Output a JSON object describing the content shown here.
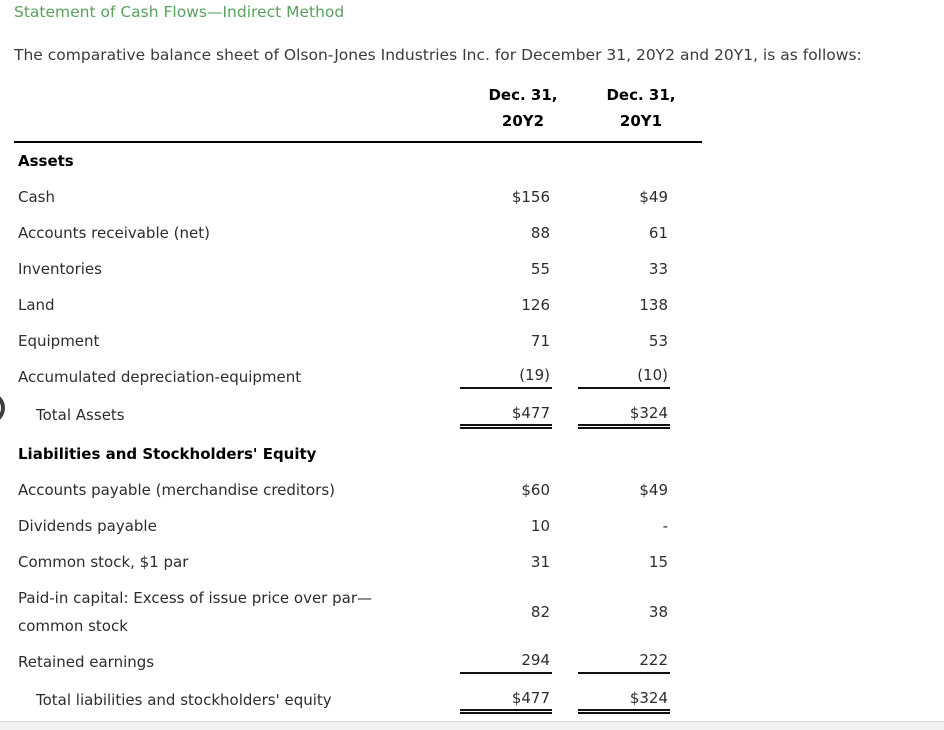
{
  "page": {
    "title": "Statement of Cash Flows—Indirect Method",
    "intro": "The comparative balance sheet of Olson-Jones Industries Inc. for December 31, 20Y2 and 20Y1, is as follows:"
  },
  "table": {
    "col_headers": [
      "Dec. 31,\n20Y2",
      "Dec. 31,\n20Y1"
    ],
    "rows": [
      {
        "type": "section",
        "label": "Assets"
      },
      {
        "label": "Cash",
        "v1": "$156",
        "v2": "$49"
      },
      {
        "label": "Accounts receivable (net)",
        "v1": "88",
        "v2": "61"
      },
      {
        "label": "Inventories",
        "v1": "55",
        "v2": "33"
      },
      {
        "label": "Land",
        "v1": "126",
        "v2": "138"
      },
      {
        "label": "Equipment",
        "v1": "71",
        "v2": "53"
      },
      {
        "label": "Accumulated depreciation-equipment",
        "v1": "(19)",
        "v2": "(10)",
        "rule": "single"
      },
      {
        "label": "Total Assets",
        "v1": "$477",
        "v2": "$324",
        "indent": true,
        "rule": "double"
      },
      {
        "type": "section",
        "label": "Liabilities and Stockholders' Equity"
      },
      {
        "label": "Accounts payable (merchandise creditors)",
        "v1": "$60",
        "v2": "$49"
      },
      {
        "label": "Dividends payable",
        "v1": "10",
        "v2": "-"
      },
      {
        "label": "Common stock, $1 par",
        "v1": "31",
        "v2": "15"
      },
      {
        "label": "Paid-in capital: Excess of issue price over par—\ncommon stock",
        "v1": "82",
        "v2": "38",
        "tall": true
      },
      {
        "label": "Retained earnings",
        "v1": "294",
        "v2": "222",
        "rule": "single"
      },
      {
        "label": "Total liabilities and stockholders' equity",
        "v1": "$477",
        "v2": "$324",
        "indent": true,
        "rule": "double"
      }
    ]
  },
  "colors": {
    "title_green": "#5aa05f",
    "body_text": "#3b3b3b",
    "table_text": "#2d2d2d",
    "rule_black": "#111111",
    "bottom_bar_gray": "#f1f1f2"
  }
}
